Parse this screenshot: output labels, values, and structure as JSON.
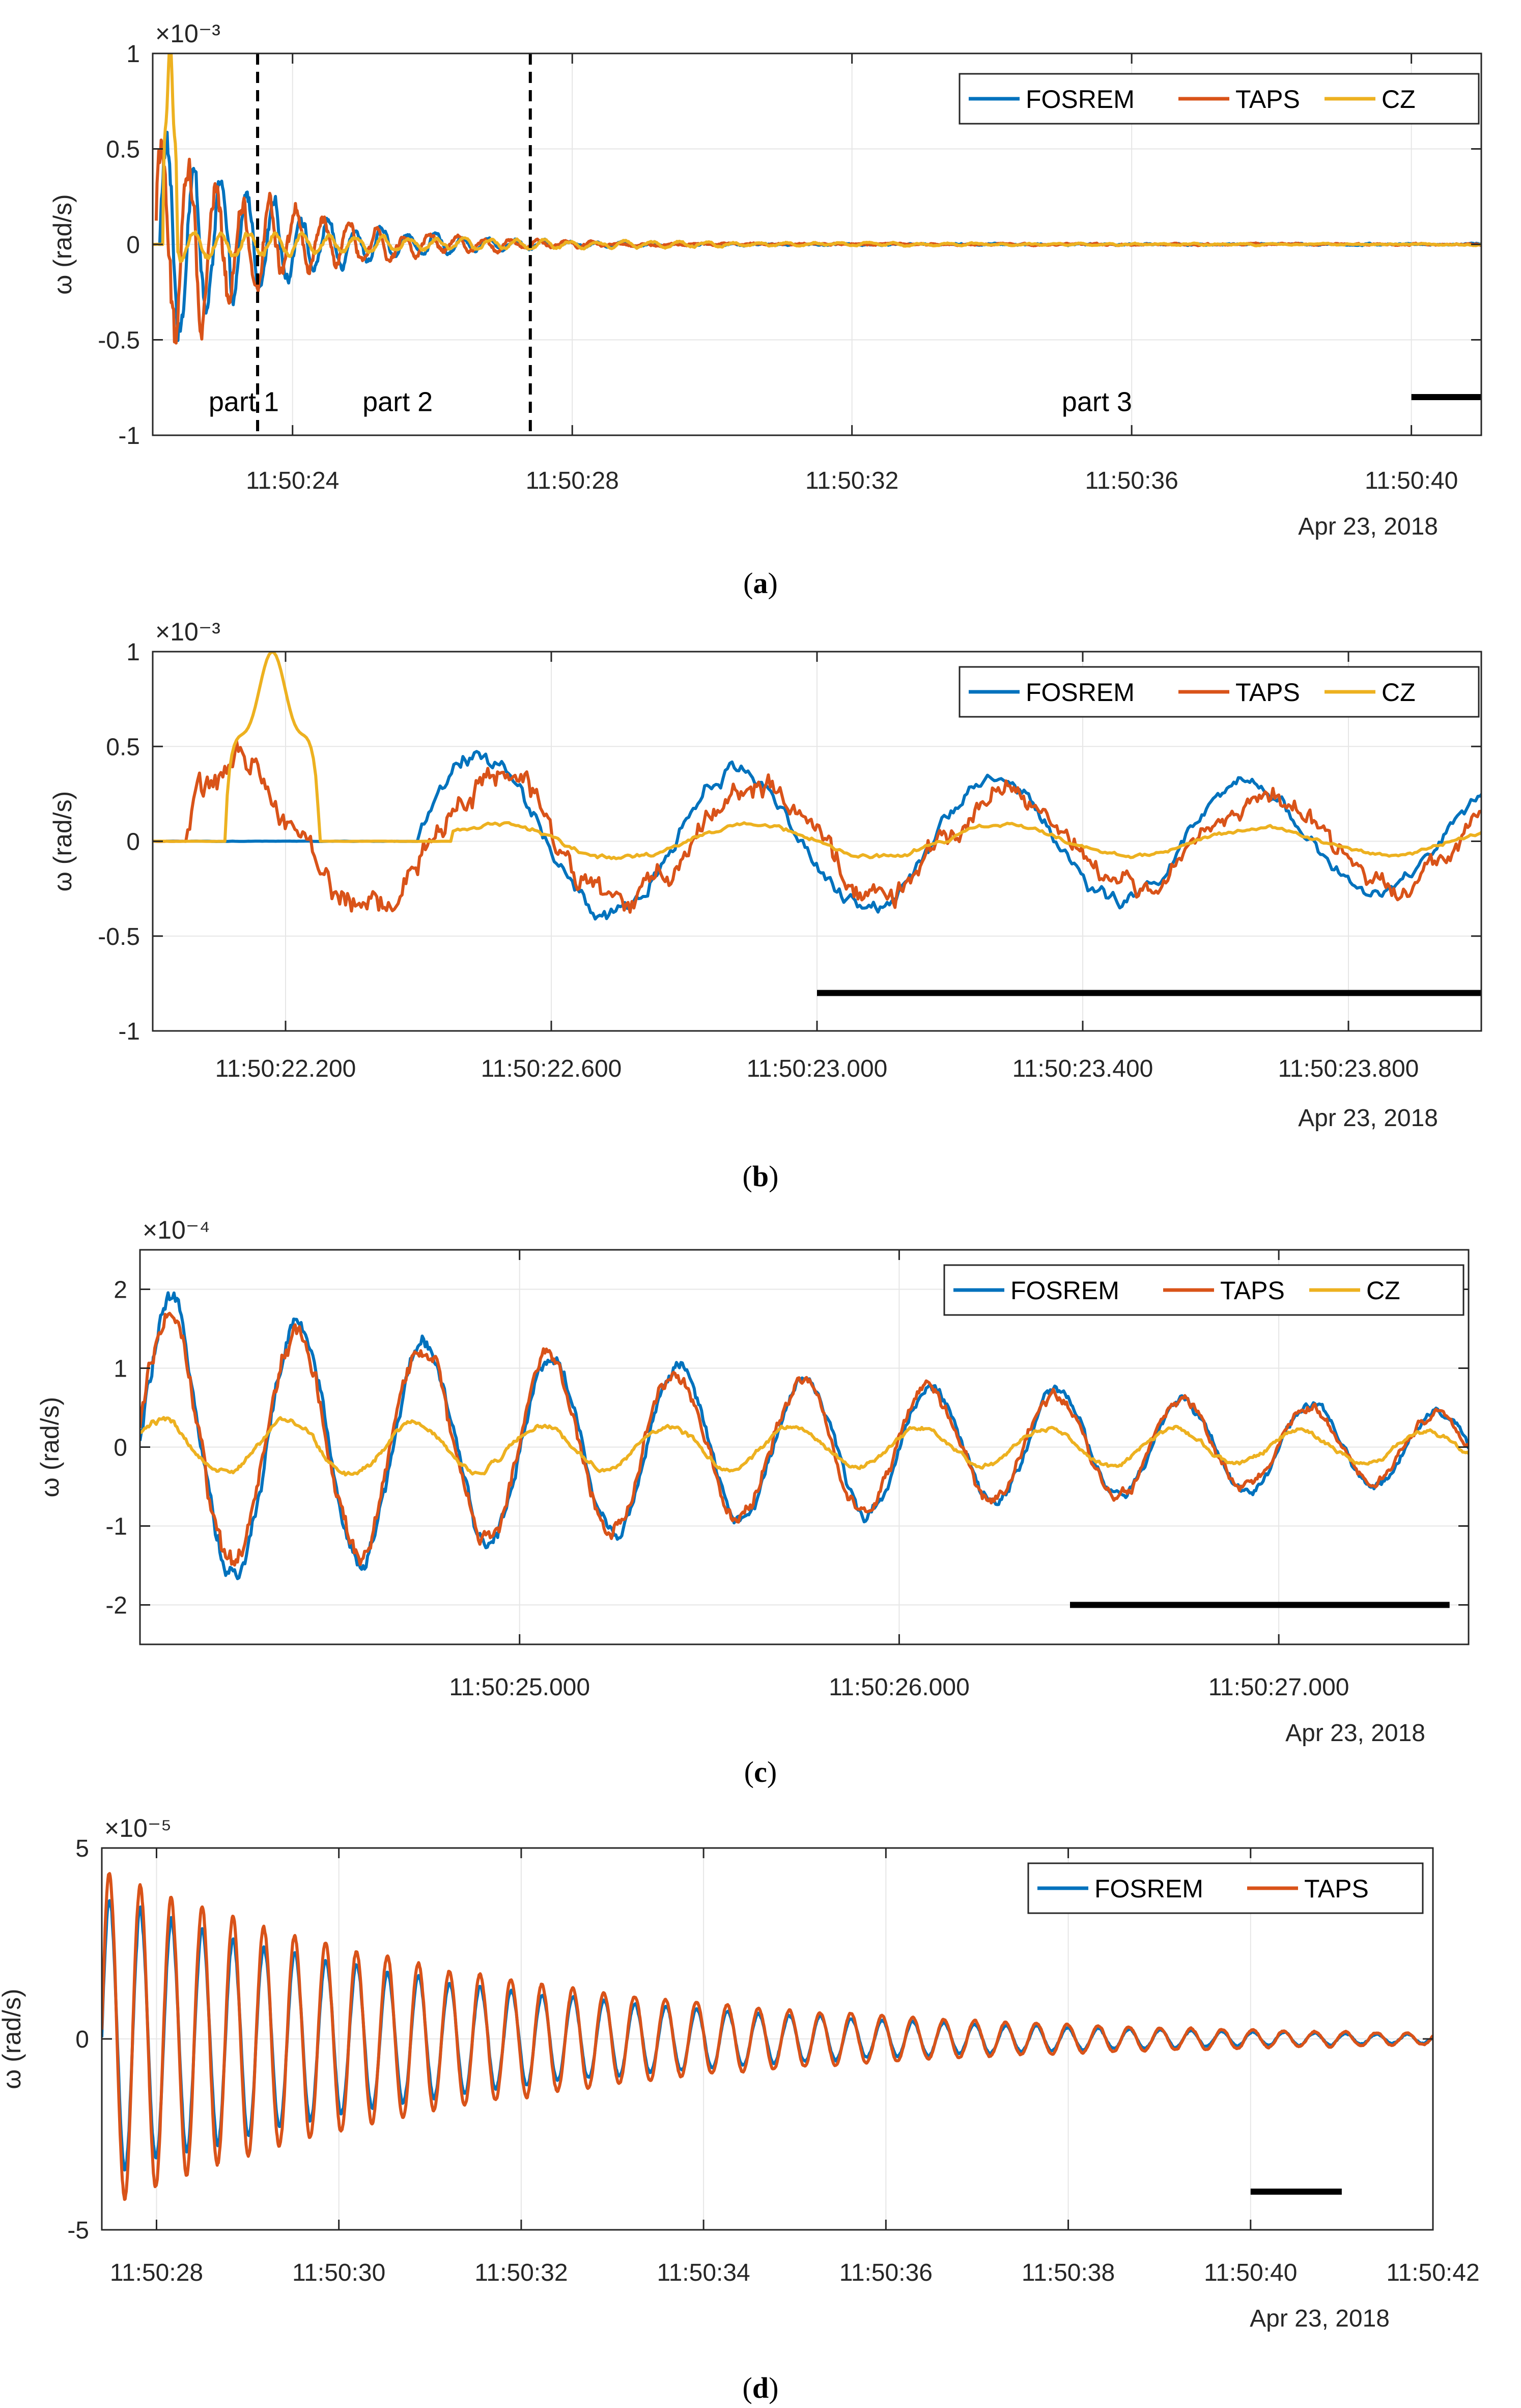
{
  "colors": {
    "fosrem": "#0072BD",
    "taps": "#D95319",
    "cz": "#EDB120",
    "grid": "#e6e6e6",
    "axis": "#262626"
  },
  "chart_data": [
    {
      "type": "line",
      "caption_letter": "a",
      "ylabel": "ω (rad/s)",
      "multiplier": "×10⁻³",
      "ylim": [
        -1,
        1
      ],
      "yticks": [
        -1,
        -0.5,
        0,
        0.5,
        1
      ],
      "ytick_labels": [
        "-1",
        "-0.5",
        "0",
        "0.5",
        "1"
      ],
      "xlim": [
        22.0,
        41.0
      ],
      "xticks": [
        24,
        28,
        32,
        36,
        40
      ],
      "xtick_labels": [
        "11:50:24",
        "11:50:28",
        "11:50:32",
        "11:50:36",
        "11:50:40"
      ],
      "date_label": "Apr 23, 2018",
      "legend": [
        "FOSREM",
        "TAPS",
        "CZ"
      ],
      "dashed_lines_x": [
        23.5,
        27.4
      ],
      "scale_bar": {
        "x0": 40.0,
        "x1": 41.0,
        "y": -0.8
      },
      "annotations": [
        {
          "text": "part 1",
          "x": 22.8,
          "y": -0.82
        },
        {
          "text": "part 2",
          "x": 25.0,
          "y": -0.82
        },
        {
          "text": "part 3",
          "x": 35.0,
          "y": -0.82
        }
      ],
      "series": [
        {
          "name": "FOSREM",
          "signal": {
            "preT0": 22.1,
            "t0": 22.1,
            "dur": 18.9,
            "points": 1600,
            "A": 0.55,
            "tau": 1.6,
            "f": 2.6,
            "phase": 0,
            "noise": 0.18,
            "floor": 0.015
          }
        },
        {
          "name": "TAPS",
          "signal": {
            "preT0": 22.05,
            "t0": 22.05,
            "dur": 18.95,
            "points": 1600,
            "A": 0.55,
            "tau": 1.6,
            "f": 2.6,
            "phase": 0.3,
            "noise": 0.25,
            "floor": 0.015
          }
        },
        {
          "name": "CZ",
          "signal": {
            "preT0": 22.0,
            "t0": 22.15,
            "dur": 19.0,
            "points": 1600,
            "A": 0.08,
            "tau": 4.0,
            "f": 2.6,
            "phase": 0.5,
            "noise": 0.03,
            "floor": 0.01,
            "spike": {
              "t": 22.25,
              "w": 0.2,
              "a": 1.0
            }
          }
        }
      ]
    },
    {
      "type": "line",
      "caption_letter": "b",
      "ylabel": "ω (rad/s)",
      "multiplier": "×10⁻³",
      "ylim": [
        -1,
        1
      ],
      "yticks": [
        -1,
        -0.5,
        0,
        0.5,
        1
      ],
      "ytick_labels": [
        "-1",
        "-0.5",
        "0",
        "0.5",
        "1"
      ],
      "xlim": [
        22.0,
        24.0
      ],
      "xticks": [
        22.2,
        22.6,
        23.0,
        23.4,
        23.8
      ],
      "xtick_labels": [
        "11:50:22.200",
        "11:50:22.600",
        "11:50:23.000",
        "11:50:23.400",
        "11:50:23.800"
      ],
      "date_label": "Apr 23, 2018",
      "legend": [
        "FOSREM",
        "TAPS",
        "CZ"
      ],
      "scale_bar": {
        "x0": 23.0,
        "x1": 24.0,
        "y": -0.8
      },
      "series": [
        {
          "name": "FOSREM",
          "signal": {
            "preT0": 22.0,
            "t0": 22.4,
            "dur": 2.0,
            "points": 700,
            "A": 0.45,
            "tau": 3.0,
            "f": 2.6,
            "phase": 0,
            "noise": 0.08,
            "floor": 0.02
          }
        },
        {
          "name": "TAPS",
          "signal": {
            "preT0": 22.0,
            "t0": 22.05,
            "dur": 2.0,
            "points": 700,
            "A": 0.4,
            "tau": 3.0,
            "f": 2.6,
            "phase": 0.2,
            "noise": 0.15,
            "floor": 0.02
          }
        },
        {
          "name": "CZ",
          "signal": {
            "preT0": 22.0,
            "t0": 22.45,
            "dur": 2.0,
            "points": 700,
            "A": 0.1,
            "tau": 4.0,
            "f": 2.6,
            "phase": 0.5,
            "noise": 0.02,
            "floor": 0.01,
            "spike": {
              "t": 22.18,
              "w": 0.14,
              "a": 1.0
            }
          }
        }
      ]
    },
    {
      "type": "line",
      "caption_letter": "c",
      "ylabel": "ω (rad/s)",
      "multiplier": "×10⁻⁴",
      "ylim": [
        -2.5,
        2.5
      ],
      "yticks": [
        -2,
        -1,
        0,
        1,
        2
      ],
      "ytick_labels": [
        "-2",
        "-1",
        "0",
        "1",
        "2"
      ],
      "xlim": [
        24.0,
        27.5
      ],
      "xticks": [
        25.0,
        26.0,
        27.0
      ],
      "xtick_labels": [
        "11:50:25.000",
        "11:50:26.000",
        "11:50:27.000"
      ],
      "date_label": "Apr 23, 2018",
      "legend": [
        "FOSREM",
        "TAPS",
        "CZ"
      ],
      "scale_bar": {
        "x0": 26.45,
        "x1": 27.45,
        "y": -2.0
      },
      "series": [
        {
          "name": "FOSREM",
          "signal": {
            "preT0": 24.0,
            "t0": 24.0,
            "dur": 3.5,
            "points": 900,
            "A": 1.8,
            "tau": 2.5,
            "f": 3.0,
            "phase": 0,
            "noise": 0.2,
            "floor": 0.1
          }
        },
        {
          "name": "TAPS",
          "signal": {
            "preT0": 24.0,
            "t0": 24.0,
            "dur": 3.5,
            "points": 900,
            "A": 1.7,
            "tau": 2.5,
            "f": 3.0,
            "phase": 0.1,
            "noise": 0.25,
            "floor": 0.1
          }
        },
        {
          "name": "CZ",
          "signal": {
            "preT0": 24.0,
            "t0": 24.0,
            "dur": 3.5,
            "points": 900,
            "A": 0.35,
            "tau": 6.0,
            "f": 3.0,
            "phase": 0.5,
            "noise": 0.05,
            "floor": 0.05
          }
        }
      ]
    },
    {
      "type": "line",
      "caption_letter": "d",
      "ylabel": "ω (rad/s)",
      "multiplier": "×10⁻⁵",
      "ylim": [
        -5,
        5
      ],
      "yticks": [
        -5,
        0,
        5
      ],
      "ytick_labels": [
        "-5",
        "0",
        "5"
      ],
      "xlim": [
        27.4,
        42.0
      ],
      "xticks": [
        28,
        30,
        32,
        34,
        36,
        38,
        40,
        42
      ],
      "xtick_labels": [
        "11:50:28",
        "11:50:30",
        "11:50:32",
        "11:50:34",
        "11:50:36",
        "11:50:38",
        "11:50:40",
        "11:50:42"
      ],
      "date_label": "Apr 23, 2018",
      "legend": [
        "FOSREM",
        "TAPS"
      ],
      "scale_bar": {
        "x0": 40.0,
        "x1": 41.0,
        "y": -4.0
      },
      "series": [
        {
          "name": "FOSREM",
          "signal": {
            "preT0": 27.4,
            "t0": 27.4,
            "dur": 14.6,
            "points": 2400,
            "A": 3.7,
            "tau": 4.2,
            "f": 2.95,
            "phase": 0,
            "noise": 0.15,
            "floor": 0.05
          }
        },
        {
          "name": "TAPS",
          "signal": {
            "preT0": 27.4,
            "t0": 27.4,
            "dur": 14.6,
            "points": 2400,
            "A": 4.4,
            "tau": 4.3,
            "f": 2.95,
            "phase": 0.05,
            "noise": 0.12,
            "floor": 0.05
          }
        }
      ]
    }
  ]
}
